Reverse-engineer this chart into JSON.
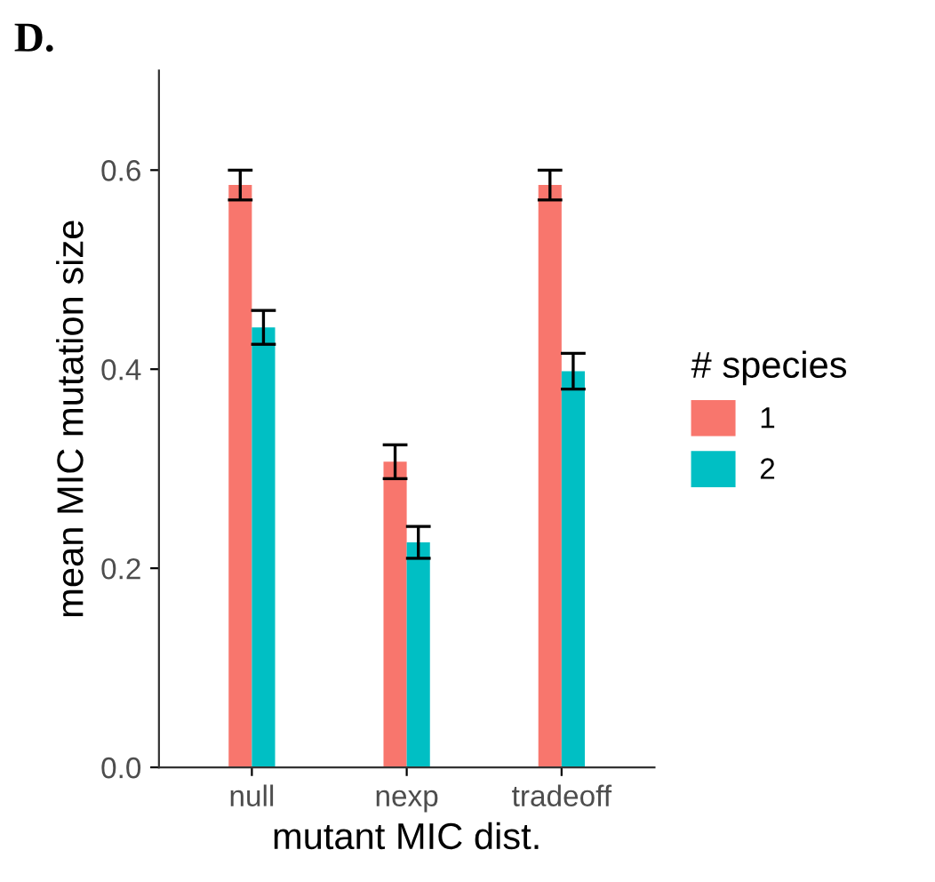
{
  "chart_data": {
    "type": "bar",
    "title": "D.",
    "xlabel": "mutant MIC dist.",
    "ylabel": "mean MIC mutation size",
    "legend_title": "# species",
    "categories": [
      "null",
      "nexp",
      "tradeoff"
    ],
    "series": [
      {
        "name": "1",
        "color": "#f8766d",
        "values": [
          0.585,
          0.307,
          0.585
        ],
        "errors": [
          0.015,
          0.017,
          0.015
        ]
      },
      {
        "name": "2",
        "color": "#00bfc4",
        "values": [
          0.442,
          0.226,
          0.398
        ],
        "errors": [
          0.017,
          0.016,
          0.018
        ]
      }
    ],
    "ylim": [
      0,
      0.7
    ],
    "yticks": [
      {
        "value": 0,
        "label": "0.0"
      },
      {
        "value": 0.2,
        "label": "0.2"
      },
      {
        "value": 0.4,
        "label": "0.4"
      },
      {
        "value": 0.6,
        "label": "0.6"
      }
    ],
    "grid": false,
    "legend": "right"
  }
}
